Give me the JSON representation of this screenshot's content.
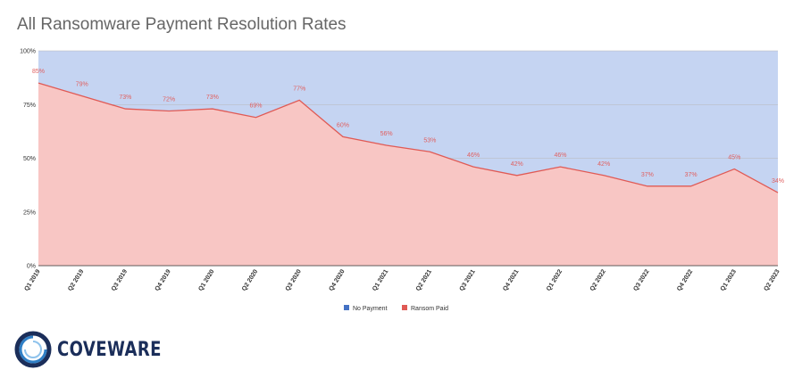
{
  "chart_data": {
    "type": "area",
    "title": "All Ransomware Payment Resolution Rates",
    "xlabel": "",
    "ylabel": "",
    "ylim": [
      0,
      100
    ],
    "yticks": [
      "0%",
      "25%",
      "50%",
      "75%",
      "100%"
    ],
    "grid": true,
    "stacked": true,
    "legend_position": "bottom",
    "categories": [
      "Q1 2019",
      "Q2 2019",
      "Q3 2019",
      "Q4 2019",
      "Q1 2020",
      "Q2 2020",
      "Q3 2020",
      "Q4 2020",
      "Q1 2021",
      "Q2 2021",
      "Q3 2021",
      "Q4 2021",
      "Q1 2022",
      "Q2 2022",
      "Q3 2022",
      "Q4 2022",
      "Q1 2023",
      "Q2 2023"
    ],
    "series": [
      {
        "name": "No Payment",
        "color": "#c5d4f2",
        "legend_color": "#4472c4",
        "values": [
          15,
          21,
          27,
          28,
          27,
          31,
          23,
          40,
          44,
          47,
          54,
          58,
          54,
          58,
          63,
          63,
          55,
          66
        ]
      },
      {
        "name": "Ransom Paid",
        "color": "#f8c6c4",
        "legend_color": "#e05a55",
        "line_color": "#e05a55",
        "values": [
          85,
          79,
          73,
          72,
          73,
          69,
          77,
          60,
          56,
          53,
          46,
          42,
          46,
          42,
          37,
          37,
          45,
          34
        ],
        "labels": [
          "85%",
          "79%",
          "73%",
          "72%",
          "73%",
          "69%",
          "77%",
          "60%",
          "56%",
          "53%",
          "46%",
          "42%",
          "46%",
          "42%",
          "37%",
          "37%",
          "45%",
          "34%"
        ]
      }
    ]
  },
  "logo": {
    "name": "COVEWARE",
    "icon": "coveware-ring-logo-icon"
  }
}
